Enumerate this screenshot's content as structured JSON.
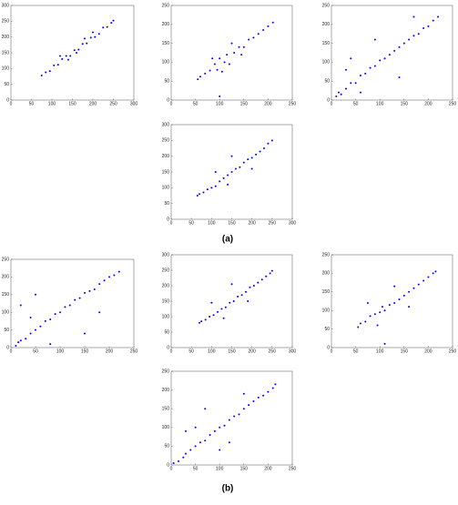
{
  "chart_data": [
    {
      "type": "scatter",
      "color": "#0000ff",
      "xlim": [
        0,
        300
      ],
      "xticks": [
        0,
        50,
        100,
        150,
        200,
        250,
        300
      ],
      "ylim": [
        0,
        300
      ],
      "yticks": [
        0,
        50,
        100,
        150,
        200,
        250,
        300
      ],
      "x": [
        75,
        85,
        95,
        105,
        115,
        125,
        135,
        145,
        155,
        165,
        175,
        185,
        195,
        205,
        215,
        225,
        235,
        245,
        250,
        120,
        160,
        200,
        140,
        180
      ],
      "values": [
        78,
        88,
        92,
        110,
        112,
        130,
        140,
        140,
        158,
        160,
        178,
        180,
        198,
        200,
        210,
        230,
        232,
        245,
        252,
        140,
        150,
        215,
        128,
        195
      ]
    },
    {
      "type": "scatter",
      "color": "#0000ff",
      "xlim": [
        0,
        250
      ],
      "xticks": [
        0,
        50,
        100,
        150,
        200,
        250
      ],
      "ylim": [
        0,
        250
      ],
      "yticks": [
        0,
        50,
        100,
        150,
        200,
        250
      ],
      "x": [
        55,
        60,
        70,
        80,
        90,
        95,
        100,
        110,
        115,
        120,
        130,
        140,
        150,
        160,
        170,
        180,
        190,
        200,
        210,
        85,
        105,
        125,
        145,
        100
      ],
      "values": [
        55,
        62,
        70,
        78,
        95,
        80,
        110,
        100,
        120,
        95,
        125,
        140,
        140,
        160,
        165,
        175,
        185,
        195,
        205,
        110,
        75,
        150,
        120,
        10
      ]
    },
    {
      "type": "scatter",
      "color": "#0000ff",
      "xlim": [
        0,
        250
      ],
      "xticks": [
        0,
        50,
        100,
        150,
        200,
        250
      ],
      "ylim": [
        0,
        250
      ],
      "yticks": [
        0,
        50,
        100,
        150,
        200,
        250
      ],
      "x": [
        10,
        15,
        20,
        30,
        40,
        50,
        60,
        70,
        80,
        90,
        100,
        110,
        120,
        130,
        140,
        150,
        160,
        170,
        180,
        190,
        200,
        210,
        220,
        40,
        60,
        90,
        140,
        170,
        30
      ],
      "values": [
        10,
        20,
        15,
        30,
        45,
        45,
        65,
        70,
        85,
        90,
        105,
        110,
        120,
        130,
        140,
        150,
        160,
        170,
        175,
        190,
        195,
        210,
        220,
        110,
        20,
        160,
        60,
        220,
        80
      ]
    },
    {
      "type": "scatter",
      "color": "#0000ff",
      "xlim": [
        0,
        300
      ],
      "xticks": [
        0,
        50,
        100,
        150,
        200,
        250,
        300
      ],
      "ylim": [
        0,
        300
      ],
      "yticks": [
        0,
        50,
        100,
        150,
        200,
        250,
        300
      ],
      "x": [
        65,
        70,
        80,
        90,
        100,
        110,
        120,
        130,
        140,
        150,
        160,
        170,
        180,
        190,
        200,
        210,
        220,
        230,
        240,
        250,
        110,
        150,
        200,
        140
      ],
      "values": [
        75,
        80,
        85,
        95,
        100,
        105,
        120,
        130,
        140,
        150,
        160,
        165,
        180,
        190,
        195,
        205,
        215,
        225,
        240,
        250,
        150,
        200,
        160,
        110
      ]
    },
    {
      "type": "scatter",
      "color": "#0000ff",
      "xlim": [
        0,
        250
      ],
      "xticks": [
        0,
        50,
        100,
        150,
        200,
        250
      ],
      "ylim": [
        0,
        250
      ],
      "yticks": [
        0,
        50,
        100,
        150,
        200,
        250
      ],
      "x": [
        10,
        15,
        20,
        30,
        40,
        50,
        60,
        70,
        80,
        90,
        100,
        110,
        120,
        130,
        140,
        150,
        160,
        170,
        180,
        190,
        200,
        210,
        220,
        20,
        50,
        80,
        150,
        180,
        40
      ],
      "values": [
        5,
        15,
        20,
        25,
        40,
        50,
        60,
        75,
        80,
        95,
        100,
        115,
        120,
        135,
        140,
        155,
        160,
        165,
        180,
        190,
        200,
        205,
        215,
        120,
        150,
        10,
        40,
        100,
        85
      ]
    },
    {
      "type": "scatter",
      "color": "#0000ff",
      "xlim": [
        0,
        300
      ],
      "xticks": [
        0,
        50,
        100,
        150,
        200,
        250,
        300
      ],
      "ylim": [
        0,
        300
      ],
      "yticks": [
        0,
        50,
        100,
        150,
        200,
        250,
        300
      ],
      "x": [
        70,
        75,
        85,
        95,
        105,
        115,
        125,
        135,
        145,
        155,
        165,
        175,
        185,
        195,
        205,
        215,
        225,
        235,
        245,
        250,
        100,
        150,
        190,
        130
      ],
      "values": [
        80,
        85,
        90,
        100,
        105,
        115,
        125,
        130,
        145,
        150,
        165,
        170,
        180,
        195,
        200,
        210,
        220,
        230,
        240,
        248,
        145,
        205,
        150,
        95
      ]
    },
    {
      "type": "scatter",
      "color": "#0000ff",
      "xlim": [
        0,
        250
      ],
      "xticks": [
        0,
        50,
        100,
        150,
        200,
        250
      ],
      "ylim": [
        0,
        250
      ],
      "yticks": [
        0,
        50,
        100,
        150,
        200,
        250
      ],
      "x": [
        55,
        60,
        70,
        80,
        90,
        100,
        105,
        110,
        120,
        130,
        140,
        150,
        160,
        170,
        180,
        190,
        200,
        210,
        215,
        75,
        95,
        130,
        160,
        110
      ],
      "values": [
        55,
        65,
        70,
        85,
        90,
        95,
        110,
        100,
        115,
        120,
        130,
        140,
        150,
        160,
        170,
        180,
        190,
        200,
        205,
        120,
        60,
        165,
        110,
        10
      ]
    },
    {
      "type": "scatter",
      "color": "#0000ff",
      "xlim": [
        0,
        250
      ],
      "xticks": [
        0,
        50,
        100,
        150,
        200,
        250
      ],
      "ylim": [
        0,
        250
      ],
      "yticks": [
        0,
        50,
        100,
        150,
        200,
        250
      ],
      "x": [
        5,
        15,
        25,
        30,
        40,
        50,
        60,
        70,
        80,
        90,
        100,
        110,
        120,
        130,
        140,
        150,
        160,
        170,
        180,
        190,
        200,
        210,
        215,
        50,
        70,
        100,
        150,
        30,
        120
      ],
      "values": [
        5,
        10,
        20,
        30,
        40,
        50,
        60,
        65,
        80,
        90,
        100,
        105,
        120,
        130,
        135,
        150,
        160,
        170,
        180,
        185,
        195,
        205,
        215,
        100,
        150,
        40,
        190,
        90,
        60
      ]
    }
  ],
  "captions": [
    "(a)",
    "(b)"
  ]
}
